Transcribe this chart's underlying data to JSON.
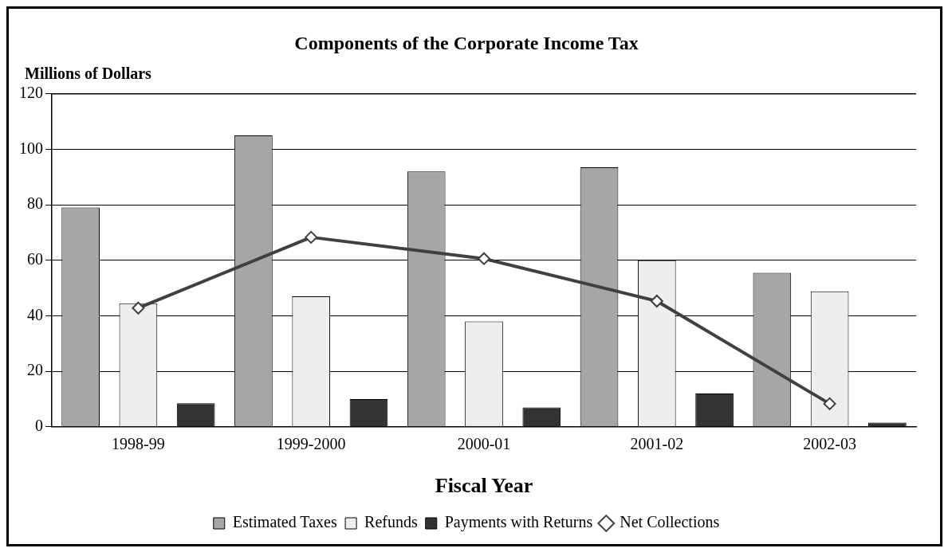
{
  "chart_data": {
    "type": "bar",
    "title": "Components of the Corporate Income Tax",
    "ylabel": "Millions of Dollars",
    "xlabel": "Fiscal Year",
    "categories": [
      "1998-99",
      "1999-2000",
      "2000-01",
      "2001-02",
      "2002-03"
    ],
    "series": [
      {
        "name": "Estimated Taxes",
        "color": "#a6a6a6",
        "values": [
          79,
          105,
          92,
          93.5,
          55.5
        ]
      },
      {
        "name": "Refunds",
        "color": "#eeeeee",
        "values": [
          44.5,
          47,
          38,
          60,
          48.8
        ]
      },
      {
        "name": "Payments with Returns",
        "color": "#333333",
        "values": [
          8.5,
          10,
          7,
          12,
          1.5
        ]
      },
      {
        "name": "Net Collections",
        "color": "#404040",
        "type": "line",
        "marker": "diamond",
        "values": [
          42.8,
          68.3,
          60.6,
          45.3,
          8.3
        ]
      }
    ],
    "ylim": [
      0,
      120
    ],
    "yticks": [
      0,
      20,
      40,
      60,
      80,
      100,
      120
    ],
    "grid": "y",
    "legend": "bottom"
  }
}
